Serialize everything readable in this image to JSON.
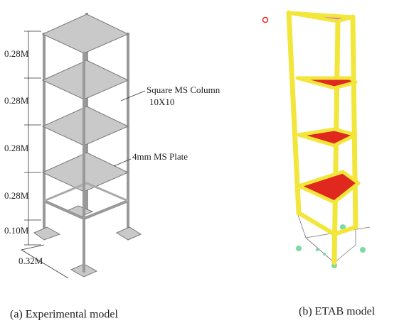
{
  "left_model": {
    "dimensions": [
      "0.28M",
      "0.28M",
      "0.28M",
      "0.28M",
      "0.10M",
      "0.32M"
    ],
    "column_label": [
      "Square MS Column",
      "10X10"
    ],
    "plate_label": "4mm MS Plate",
    "caption": "(a) Experimental model"
  },
  "right_model": {
    "caption": "(b) ETAB model"
  }
}
